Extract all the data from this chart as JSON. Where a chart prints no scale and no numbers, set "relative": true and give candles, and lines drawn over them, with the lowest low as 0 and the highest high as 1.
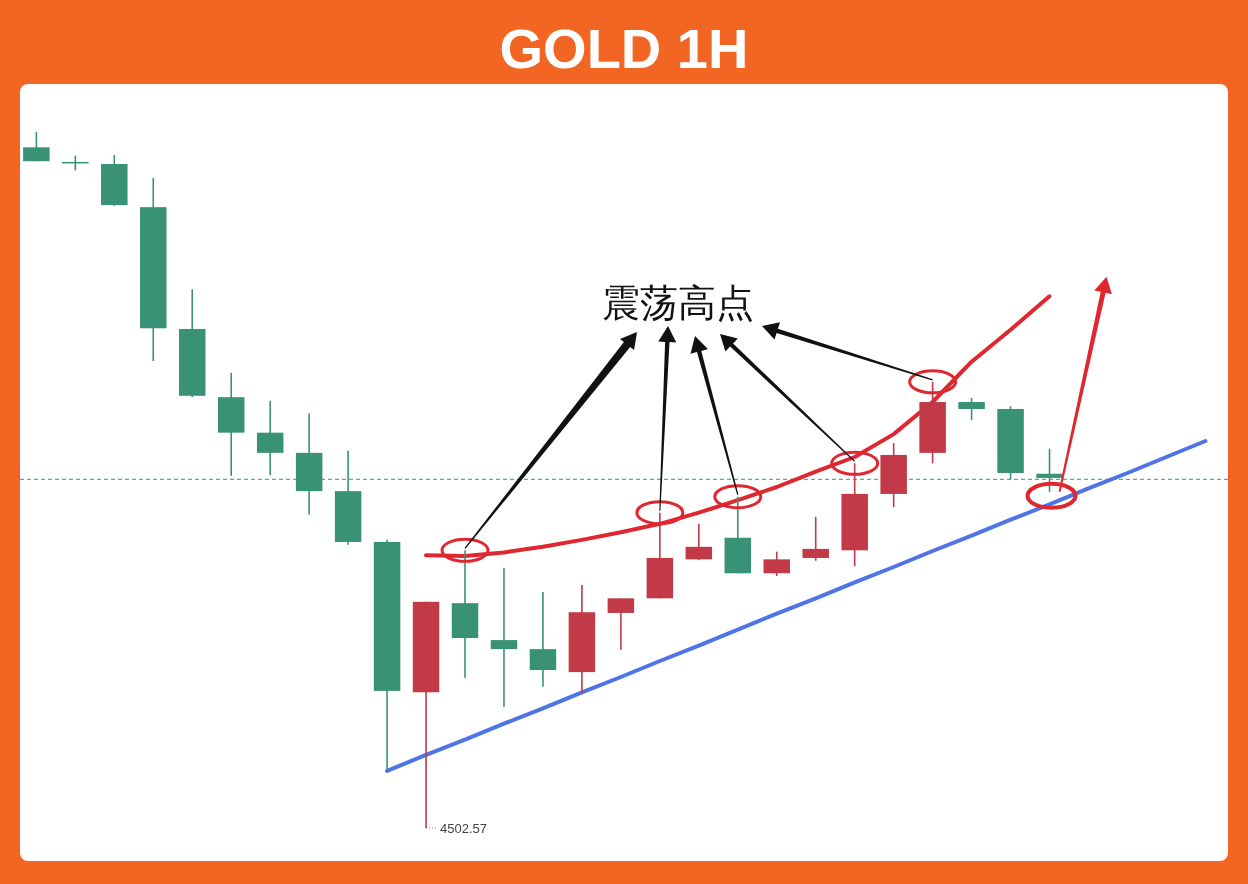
{
  "chart_data": {
    "type": "candlestick",
    "title": "GOLD 1H",
    "relative": true,
    "categories": [
      null,
      null,
      null,
      null,
      null,
      null,
      null,
      null,
      null,
      null,
      null,
      null,
      null,
      null,
      null,
      null,
      null,
      null,
      null,
      null,
      null,
      null,
      null,
      null,
      null,
      null,
      null,
      null,
      null,
      null,
      null
    ],
    "ohlc": [
      [
        0.978,
        1.0,
        0.958,
        0.958
      ],
      [
        0.957,
        0.966,
        0.945,
        0.956
      ],
      [
        0.954,
        0.967,
        0.894,
        0.895
      ],
      [
        0.892,
        0.934,
        0.671,
        0.718
      ],
      [
        0.717,
        0.774,
        0.619,
        0.621
      ],
      [
        0.619,
        0.654,
        0.506,
        0.568
      ],
      [
        0.568,
        0.614,
        0.507,
        0.539
      ],
      [
        0.539,
        0.596,
        0.45,
        0.484
      ],
      [
        0.484,
        0.542,
        0.407,
        0.411
      ],
      [
        0.411,
        0.414,
        0.082,
        0.197
      ],
      [
        0.195,
        0.325,
        0.0,
        0.325
      ],
      [
        0.323,
        0.399,
        0.216,
        0.273
      ],
      [
        0.27,
        0.374,
        0.174,
        0.257
      ],
      [
        0.257,
        0.339,
        0.203,
        0.227
      ],
      [
        0.224,
        0.349,
        0.194,
        0.31
      ],
      [
        0.309,
        0.33,
        0.256,
        0.33
      ],
      [
        0.33,
        0.453,
        0.33,
        0.388
      ],
      [
        0.386,
        0.437,
        0.385,
        0.404
      ],
      [
        0.417,
        0.476,
        0.366,
        0.366
      ],
      [
        0.366,
        0.397,
        0.362,
        0.386
      ],
      [
        0.388,
        0.447,
        0.384,
        0.401
      ],
      [
        0.399,
        0.524,
        0.376,
        0.48
      ],
      [
        0.48,
        0.553,
        0.461,
        0.536
      ],
      [
        0.539,
        0.641,
        0.524,
        0.612
      ],
      [
        0.612,
        0.618,
        0.586,
        0.602
      ],
      [
        0.602,
        0.606,
        0.501,
        0.51
      ],
      [
        0.509,
        0.545,
        0.483,
        0.503
      ],
      null,
      null,
      null,
      null
    ],
    "colors": [
      "#3a9276",
      "#3a9276",
      "#3a9276",
      "#3a9276",
      "#3a9276",
      "#3a9276",
      "#3a9276",
      "#3a9276",
      "#3a9276",
      "#3a9276",
      "#c23a48",
      "#3a9276",
      "#3a9276",
      "#3a9276",
      "#c23a48",
      "#c23a48",
      "#c23a48",
      "#c23a48",
      "#3a9276",
      "#c23a48",
      "#c23a48",
      "#c23a48",
      "#c23a48",
      "#c23a48",
      "#3a9276",
      "#3a9276",
      "#3a9276",
      null,
      null,
      null,
      null
    ],
    "series": [
      {
        "type": "line",
        "color": "#4f74e8",
        "values": [
          null,
          null,
          null,
          null,
          null,
          null,
          null,
          null,
          null,
          0.082,
          0.105,
          0.127,
          0.15,
          0.172,
          0.195,
          0.217,
          0.24,
          0.262,
          0.285,
          0.308,
          0.33,
          0.353,
          0.375,
          0.398,
          0.42,
          0.443,
          0.465,
          0.488,
          0.51,
          0.533,
          0.556
        ]
      },
      {
        "type": "line",
        "color": "#e0262e",
        "values": [
          null,
          null,
          null,
          null,
          null,
          null,
          null,
          null,
          null,
          null,
          0.392,
          0.391,
          0.396,
          0.404,
          0.414,
          0.425,
          0.437,
          0.453,
          0.471,
          0.49,
          0.512,
          0.533,
          0.566,
          0.612,
          0.67,
          0.716,
          0.764,
          null,
          null,
          null,
          null
        ]
      }
    ],
    "ref_lines": [
      {
        "axis": "y",
        "value": 0.501,
        "label": null,
        "color": "#3a9276",
        "line_style": "dashed"
      }
    ],
    "annotations": [
      "震荡高点",
      "4502.57"
    ]
  }
}
